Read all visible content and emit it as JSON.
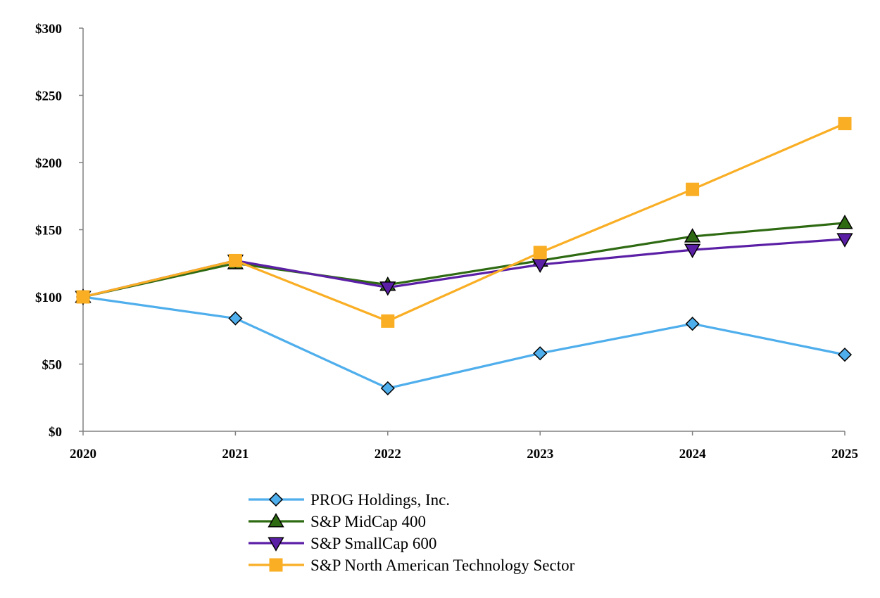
{
  "chart_data": {
    "type": "line",
    "title": "",
    "xlabel": "",
    "ylabel": "",
    "x": [
      "2020",
      "2021",
      "2022",
      "2023",
      "2024",
      "2025"
    ],
    "ylim": [
      0,
      300
    ],
    "yticks": [
      0,
      50,
      100,
      150,
      200,
      250,
      300
    ],
    "ytick_labels": [
      "$0",
      "$50",
      "$100",
      "$150",
      "$200",
      "$250",
      "$300"
    ],
    "grid": false,
    "legend_position": "bottom",
    "series": [
      {
        "name": "PROG Holdings, Inc.",
        "values": [
          100,
          84,
          32,
          58,
          80,
          57
        ],
        "color": "#4FAEEC",
        "marker": "diamond",
        "marker_color": "#4FAEEC"
      },
      {
        "name": "S&P MidCap 400",
        "values": [
          100,
          125,
          109,
          127,
          145,
          155
        ],
        "color": "#2E6A12",
        "marker": "triangle-up",
        "marker_color": "#2E6A12"
      },
      {
        "name": "S&P SmallCap 600",
        "values": [
          100,
          127,
          107,
          124,
          135,
          143
        ],
        "color": "#5B1FA6",
        "marker": "triangle-down",
        "marker_color": "#5B1FA6"
      },
      {
        "name": "S&P North American Technology Sector",
        "values": [
          100,
          127,
          82,
          133,
          180,
          229
        ],
        "color": "#F9AE24",
        "marker": "square",
        "marker_color": "#F9AE24"
      }
    ]
  }
}
